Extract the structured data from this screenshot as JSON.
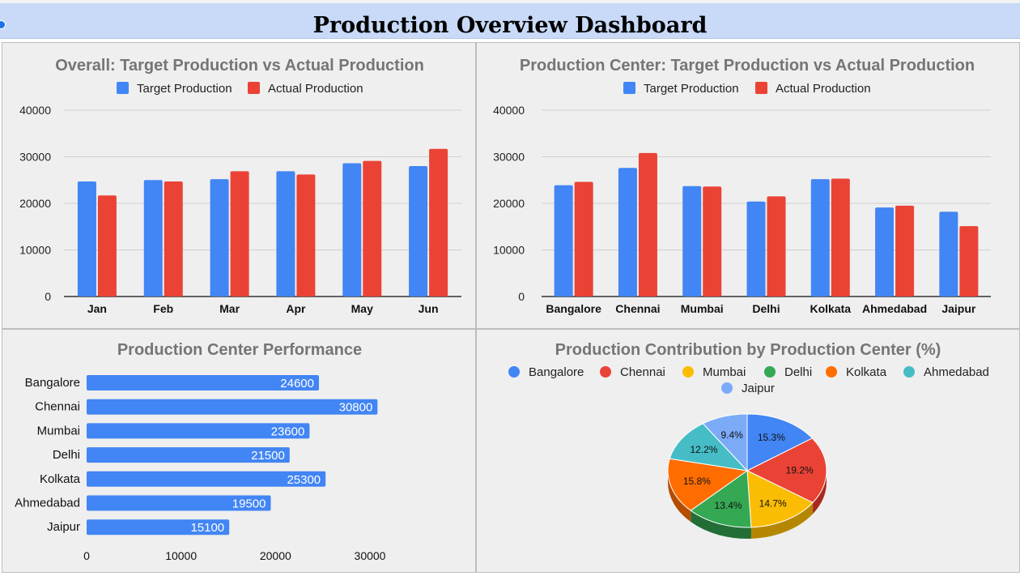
{
  "header": {
    "title": "Production Overview Dashboard"
  },
  "colors": {
    "target": "#4285f4",
    "actual": "#ea4335",
    "bar": "#4285f4",
    "pie": [
      "#4285f4",
      "#ea4335",
      "#fbbc04",
      "#34a853",
      "#ff6d01",
      "#46bdc6",
      "#7baaf7"
    ]
  },
  "chart_data": [
    {
      "type": "bar",
      "title": "Overall: Target Production vs Actual Production",
      "legend_position": "top",
      "categories": [
        "Jan",
        "Feb",
        "Mar",
        "Apr",
        "May",
        "Jun"
      ],
      "series": [
        {
          "name": "Target Production",
          "values": [
            24700,
            25000,
            25200,
            26900,
            28600,
            28000
          ]
        },
        {
          "name": "Actual Production",
          "values": [
            21700,
            24700,
            26900,
            26200,
            29100,
            31700
          ]
        }
      ],
      "ylim": [
        0,
        40000
      ],
      "yticks": [
        0,
        10000,
        20000,
        30000,
        40000
      ],
      "grid": true
    },
    {
      "type": "bar",
      "title": "Production Center: Target Production vs Actual Production",
      "legend_position": "top",
      "categories": [
        "Bangalore",
        "Chennai",
        "Mumbai",
        "Delhi",
        "Kolkata",
        "Ahmedabad",
        "Jaipur"
      ],
      "series": [
        {
          "name": "Target Production",
          "values": [
            23900,
            27600,
            23700,
            20400,
            25200,
            19100,
            18200
          ]
        },
        {
          "name": "Actual Production",
          "values": [
            24600,
            30800,
            23600,
            21500,
            25300,
            19500,
            15100
          ]
        }
      ],
      "ylim": [
        0,
        40000
      ],
      "yticks": [
        0,
        10000,
        20000,
        30000,
        40000
      ],
      "grid": true
    },
    {
      "type": "bar",
      "orientation": "horizontal",
      "title": "Production Center Performance",
      "categories": [
        "Bangalore",
        "Chennai",
        "Mumbai",
        "Delhi",
        "Kolkata",
        "Ahmedabad",
        "Jaipur"
      ],
      "values": [
        24600,
        30800,
        23600,
        21500,
        25300,
        19500,
        15100
      ],
      "xlim": [
        0,
        30000
      ],
      "xticks": [
        0,
        10000,
        20000,
        30000
      ],
      "grid": false
    },
    {
      "type": "pie",
      "title": "Production Contribution by Production Center (%)",
      "legend_position": "top",
      "labels": [
        "Bangalore",
        "Chennai",
        "Mumbai",
        "Delhi",
        "Kolkata",
        "Ahmedabad",
        "Jaipur"
      ],
      "values": [
        15.3,
        19.2,
        14.7,
        13.4,
        15.8,
        12.2,
        9.4
      ],
      "value_labels": [
        "15.3%",
        "19.2%",
        "14.7%",
        "13.4%",
        "15.8%",
        "12.2%",
        "9.4%"
      ],
      "style": "3d"
    }
  ]
}
